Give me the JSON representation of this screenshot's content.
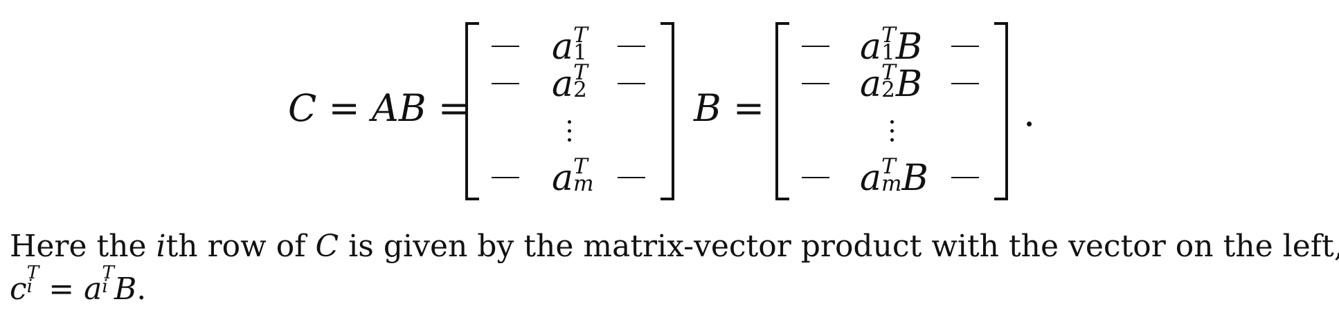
{
  "equation": {
    "lhs": "C = AB =",
    "middle": "B =",
    "period": ".",
    "left_matrix": {
      "rows": [
        {
          "dash_left": "—",
          "base": "a",
          "sup": "T",
          "sub": "1",
          "suffix": "",
          "dash_right": "—"
        },
        {
          "dash_left": "—",
          "base": "a",
          "sup": "T",
          "sub": "2",
          "suffix": "",
          "dash_right": "—"
        },
        {
          "vdots": "⋮"
        },
        {
          "dash_left": "—",
          "base": "a",
          "sup": "T",
          "sub": "m",
          "suffix": "",
          "dash_right": "—"
        }
      ]
    },
    "right_matrix": {
      "rows": [
        {
          "dash_left": "—",
          "base": "a",
          "sup": "T",
          "sub": "1",
          "suffix": "B",
          "dash_right": "—"
        },
        {
          "dash_left": "—",
          "base": "a",
          "sup": "T",
          "sub": "2",
          "suffix": "B",
          "dash_right": "—"
        },
        {
          "vdots": "⋮"
        },
        {
          "dash_left": "—",
          "base": "a",
          "sup": "T",
          "sub": "m",
          "suffix": "B",
          "dash_right": "—"
        }
      ]
    }
  },
  "paragraph": {
    "line1_pre": "Here the ",
    "line1_i": "i",
    "line1_post_i": "th row of ",
    "line1_C": "C",
    "line1_rest": " is given by the matrix-vector product with the vector on the left,",
    "line2_c": "c",
    "line2_c_sup": "T",
    "line2_c_sub": "i",
    "line2_eq": " = ",
    "line2_a": "a",
    "line2_a_sup": "T",
    "line2_a_sub": "i",
    "line2_B": "B",
    "line2_end": "."
  }
}
